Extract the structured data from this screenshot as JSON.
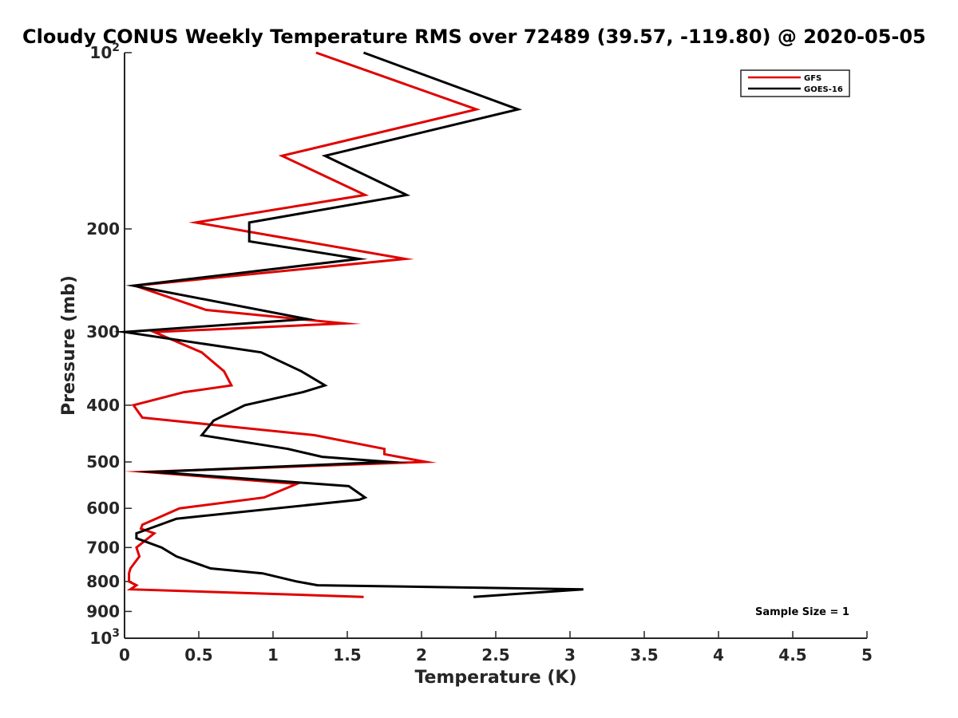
{
  "chart_data": {
    "type": "line",
    "title": "Cloudy CONUS Weekly Temperature RMS over 72489 (39.57, -119.80) @ 2020-05-05",
    "xlabel": "Temperature (K)",
    "ylabel": "Pressure (mb)",
    "xlim": [
      0,
      5
    ],
    "ylim": [
      100,
      1000
    ],
    "yscale": "log",
    "yreversed": true,
    "x_ticks": [
      0,
      0.5,
      1,
      1.5,
      2,
      2.5,
      3,
      3.5,
      4,
      4.5,
      5
    ],
    "x_tick_labels": [
      "0",
      "0.5",
      "1",
      "1.5",
      "2",
      "2.5",
      "3",
      "3.5",
      "4",
      "4.5",
      "5"
    ],
    "y_ticks": [
      100,
      200,
      300,
      400,
      500,
      600,
      700,
      800,
      900,
      1000
    ],
    "y_tick_labels": [
      {
        "base": "10",
        "exp": "2"
      },
      {
        "base": "200",
        "exp": ""
      },
      {
        "base": "300",
        "exp": ""
      },
      {
        "base": "400",
        "exp": ""
      },
      {
        "base": "500",
        "exp": ""
      },
      {
        "base": "600",
        "exp": ""
      },
      {
        "base": "700",
        "exp": ""
      },
      {
        "base": "800",
        "exp": ""
      },
      {
        "base": "900",
        "exp": ""
      },
      {
        "base": "10",
        "exp": "3"
      }
    ],
    "grid": false,
    "legend_position": "top-right",
    "series": [
      {
        "name": "GFS",
        "color": "#e00000",
        "points": [
          [
            1.29,
            100
          ],
          [
            2.37,
            125
          ],
          [
            1.06,
            150
          ],
          [
            1.62,
            175
          ],
          [
            0.48,
            195
          ],
          [
            1.89,
            225
          ],
          [
            0.07,
            250
          ],
          [
            0.55,
            275
          ],
          [
            1.48,
            290
          ],
          [
            0.2,
            300
          ],
          [
            0.52,
            325
          ],
          [
            0.67,
            350
          ],
          [
            0.72,
            370
          ],
          [
            0.4,
            380
          ],
          [
            0.06,
            400
          ],
          [
            0.12,
            420
          ],
          [
            1.28,
            450
          ],
          [
            1.75,
            475
          ],
          [
            1.75,
            485
          ],
          [
            2.03,
            500
          ],
          [
            0.14,
            520
          ],
          [
            1.16,
            545
          ],
          [
            0.94,
            575
          ],
          [
            0.37,
            600
          ],
          [
            0.12,
            640
          ],
          [
            0.11,
            650
          ],
          [
            0.2,
            662
          ],
          [
            0.08,
            700
          ],
          [
            0.1,
            725
          ],
          [
            0.04,
            760
          ],
          [
            0.03,
            775
          ],
          [
            0.03,
            800
          ],
          [
            0.08,
            812
          ],
          [
            0.04,
            825
          ],
          [
            1.61,
            850
          ]
        ]
      },
      {
        "name": "GOES-16",
        "color": "#000000",
        "points": [
          [
            1.61,
            100
          ],
          [
            2.65,
            125
          ],
          [
            1.35,
            150
          ],
          [
            1.9,
            175
          ],
          [
            0.84,
            195
          ],
          [
            0.84,
            210
          ],
          [
            1.58,
            225
          ],
          [
            0.06,
            250
          ],
          [
            1.23,
            285
          ],
          [
            0.0,
            300
          ],
          [
            0.92,
            325
          ],
          [
            1.19,
            350
          ],
          [
            1.35,
            370
          ],
          [
            1.2,
            380
          ],
          [
            0.81,
            400
          ],
          [
            0.6,
            425
          ],
          [
            0.52,
            450
          ],
          [
            1.1,
            475
          ],
          [
            1.33,
            490
          ],
          [
            1.78,
            500
          ],
          [
            0.2,
            520
          ],
          [
            1.51,
            550
          ],
          [
            1.62,
            575
          ],
          [
            1.58,
            580
          ],
          [
            0.35,
            625
          ],
          [
            0.08,
            662
          ],
          [
            0.08,
            675
          ],
          [
            0.25,
            700
          ],
          [
            0.35,
            725
          ],
          [
            0.58,
            760
          ],
          [
            0.93,
            775
          ],
          [
            1.16,
            800
          ],
          [
            1.3,
            812
          ],
          [
            3.09,
            825
          ],
          [
            2.35,
            850
          ]
        ]
      }
    ],
    "annotation": "Sample Size = 1"
  }
}
